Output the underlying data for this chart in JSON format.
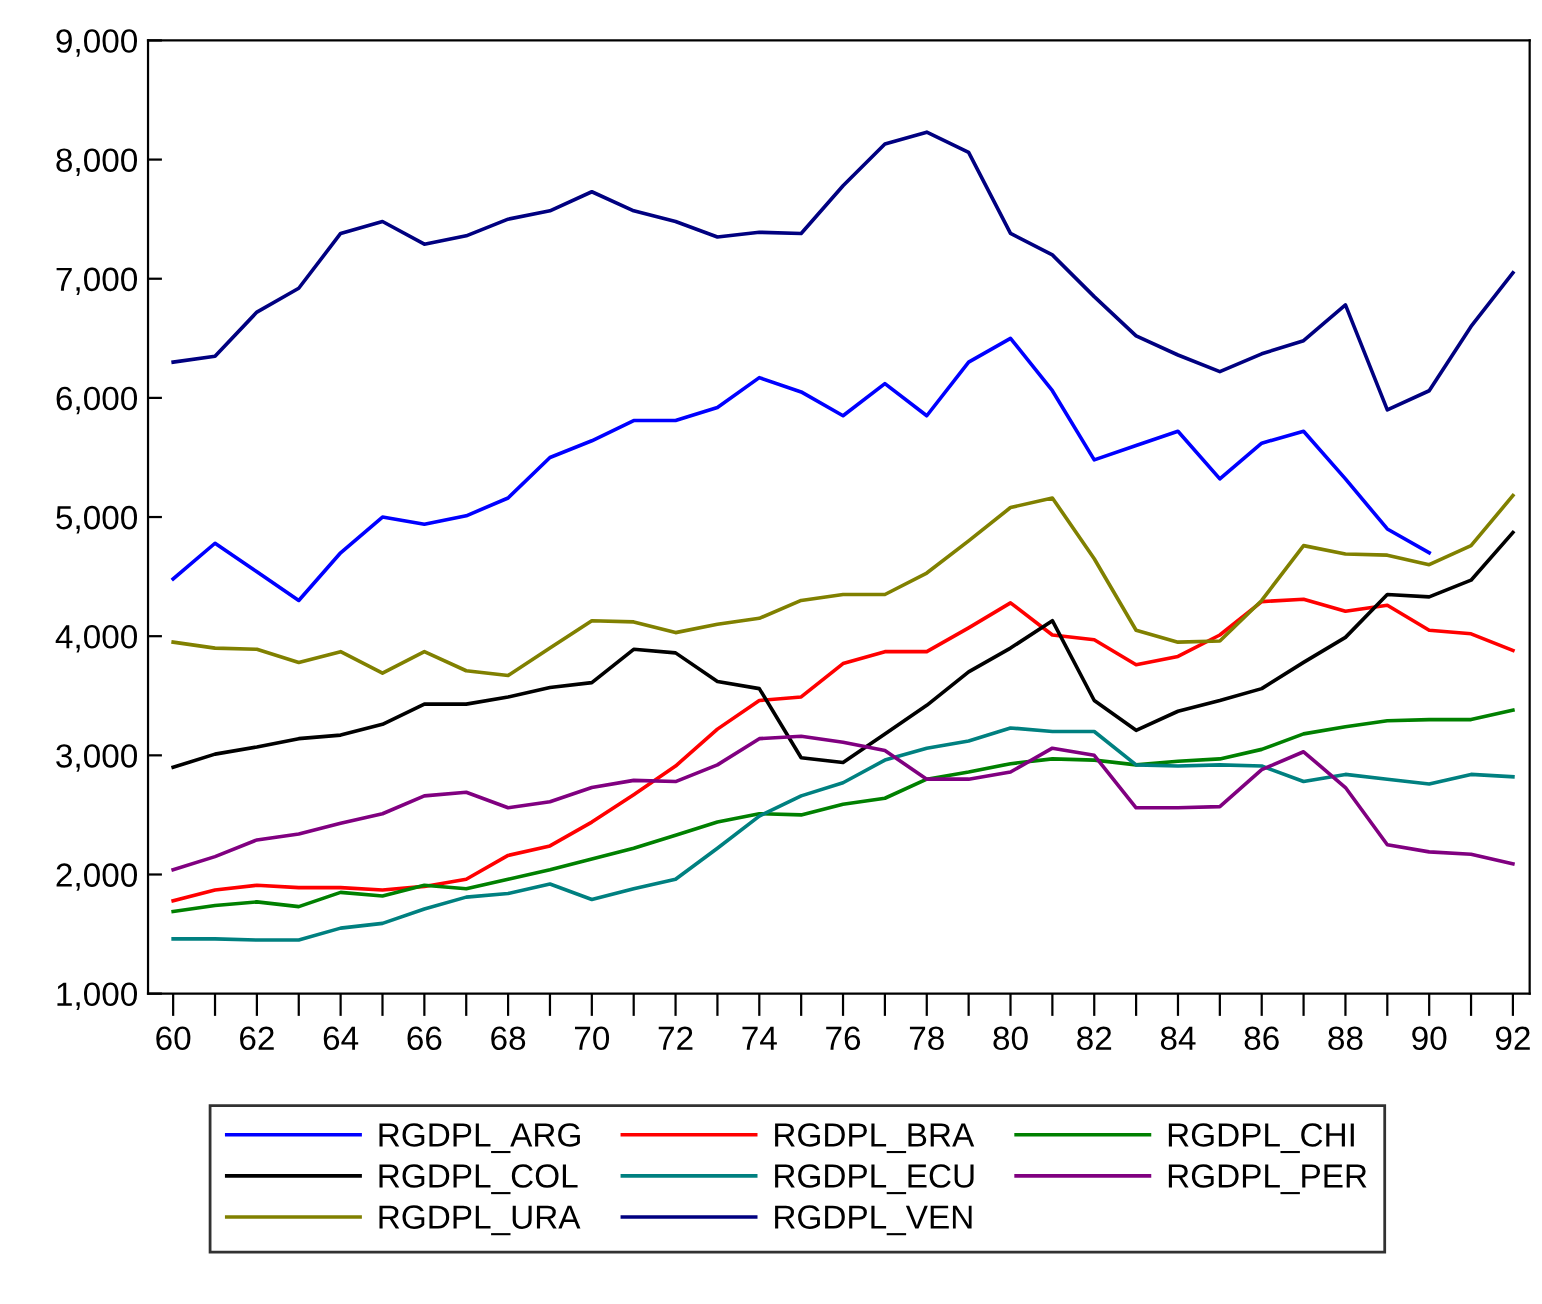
{
  "chart_data": {
    "type": "line",
    "x": [
      60,
      61,
      62,
      63,
      64,
      65,
      66,
      67,
      68,
      69,
      70,
      71,
      72,
      73,
      74,
      75,
      76,
      77,
      78,
      79,
      80,
      81,
      82,
      83,
      84,
      85,
      86,
      87,
      88,
      89,
      90,
      91,
      92
    ],
    "xlim": [
      59.4,
      92.4
    ],
    "xticks": [
      {
        "value": 60,
        "label": "60"
      },
      {
        "value": 61,
        "label": null
      },
      {
        "value": 62,
        "label": "62"
      },
      {
        "value": 63,
        "label": null
      },
      {
        "value": 64,
        "label": "64"
      },
      {
        "value": 65,
        "label": null
      },
      {
        "value": 66,
        "label": "66"
      },
      {
        "value": 67,
        "label": null
      },
      {
        "value": 68,
        "label": "68"
      },
      {
        "value": 69,
        "label": null
      },
      {
        "value": 70,
        "label": "70"
      },
      {
        "value": 71,
        "label": null
      },
      {
        "value": 72,
        "label": "72"
      },
      {
        "value": 73,
        "label": null
      },
      {
        "value": 74,
        "label": "74"
      },
      {
        "value": 75,
        "label": null
      },
      {
        "value": 76,
        "label": "76"
      },
      {
        "value": 77,
        "label": null
      },
      {
        "value": 78,
        "label": "78"
      },
      {
        "value": 79,
        "label": null
      },
      {
        "value": 80,
        "label": "80"
      },
      {
        "value": 81,
        "label": null
      },
      {
        "value": 82,
        "label": "82"
      },
      {
        "value": 83,
        "label": null
      },
      {
        "value": 84,
        "label": "84"
      },
      {
        "value": 85,
        "label": null
      },
      {
        "value": 86,
        "label": "86"
      },
      {
        "value": 87,
        "label": null
      },
      {
        "value": 88,
        "label": "88"
      },
      {
        "value": 89,
        "label": null
      },
      {
        "value": 90,
        "label": "90"
      },
      {
        "value": 91,
        "label": null
      },
      {
        "value": 92,
        "label": "92"
      }
    ],
    "ylim": [
      1000,
      9000
    ],
    "yticks": [
      {
        "value": 1000,
        "label": "1,000"
      },
      {
        "value": 2000,
        "label": "2,000"
      },
      {
        "value": 3000,
        "label": "3,000"
      },
      {
        "value": 4000,
        "label": "4,000"
      },
      {
        "value": 5000,
        "label": "5,000"
      },
      {
        "value": 6000,
        "label": "6,000"
      },
      {
        "value": 7000,
        "label": "7,000"
      },
      {
        "value": 8000,
        "label": "8,000"
      },
      {
        "value": 9000,
        "label": "9,000"
      }
    ],
    "grid": false,
    "legend": "bottom",
    "marker": "none",
    "line_style": "solid",
    "series": [
      {
        "name": "RGDPL_ARG",
        "color": "#0000ff",
        "values": [
          4480,
          4780,
          4540,
          4300,
          4700,
          5000,
          4940,
          5010,
          5160,
          5500,
          5640,
          5810,
          5810,
          5920,
          6170,
          6050,
          5850,
          6120,
          5850,
          6300,
          6500,
          6060,
          5480,
          5600,
          5720,
          5320,
          5620,
          5720,
          5320,
          4900,
          4700,
          null,
          null
        ]
      },
      {
        "name": "RGDPL_BRA",
        "color": "#ff0000",
        "values": [
          1780,
          1870,
          1910,
          1890,
          1890,
          1870,
          1900,
          1960,
          2160,
          2240,
          2440,
          2670,
          2910,
          3220,
          3460,
          3490,
          3770,
          3870,
          3870,
          4070,
          4280,
          4010,
          3970,
          3760,
          3830,
          4010,
          4290,
          4310,
          4210,
          4260,
          4050,
          4020,
          3880
        ]
      },
      {
        "name": "RGDPL_CHI",
        "color": "#008000",
        "values": [
          1690,
          1740,
          1770,
          1730,
          1850,
          1820,
          1910,
          1880,
          1960,
          2040,
          2130,
          2220,
          2330,
          2440,
          2510,
          2500,
          2590,
          2640,
          2800,
          2860,
          2930,
          2970,
          2960,
          2920,
          2950,
          2970,
          3050,
          3180,
          3240,
          3290,
          3300,
          3300,
          3380
        ]
      },
      {
        "name": "RGDPL_COL",
        "color": "#000000",
        "values": [
          2900,
          3010,
          3070,
          3140,
          3170,
          3260,
          3430,
          3430,
          3490,
          3570,
          3610,
          3890,
          3860,
          3620,
          3560,
          2980,
          2940,
          3180,
          3420,
          3700,
          3900,
          4130,
          3460,
          3210,
          3370,
          3460,
          3560,
          3780,
          3990,
          4350,
          4330,
          4470,
          4870
        ]
      },
      {
        "name": "RGDPL_ECU",
        "color": "#008080",
        "values": [
          1460,
          1460,
          1450,
          1450,
          1550,
          1590,
          1710,
          1810,
          1840,
          1920,
          1790,
          1880,
          1960,
          2220,
          2490,
          2660,
          2770,
          2960,
          3060,
          3120,
          3230,
          3200,
          3200,
          2920,
          2910,
          2920,
          2910,
          2780,
          2840,
          2800,
          2760,
          2840,
          2820
        ]
      },
      {
        "name": "RGDPL_PER",
        "color": "#800080",
        "values": [
          2040,
          2150,
          2290,
          2340,
          2430,
          2510,
          2660,
          2690,
          2560,
          2610,
          2730,
          2790,
          2780,
          2920,
          3140,
          3160,
          3110,
          3040,
          2800,
          2800,
          2860,
          3060,
          3000,
          2560,
          2560,
          2570,
          2880,
          3030,
          2730,
          2250,
          2190,
          2170,
          2090
        ]
      },
      {
        "name": "RGDPL_URA",
        "color": "#808000",
        "values": [
          3950,
          3900,
          3890,
          3780,
          3870,
          3690,
          3870,
          3710,
          3670,
          3900,
          4130,
          4120,
          4030,
          4100,
          4150,
          4300,
          4350,
          4350,
          4530,
          4800,
          5080,
          5160,
          4650,
          4050,
          3950,
          3960,
          4300,
          4760,
          4690,
          4680,
          4600,
          4760,
          5180
        ]
      },
      {
        "name": "RGDPL_VEN",
        "color": "#000080",
        "values": [
          6300,
          6350,
          6720,
          6920,
          7380,
          7480,
          7290,
          7360,
          7500,
          7570,
          7730,
          7570,
          7480,
          7350,
          7390,
          7380,
          7780,
          8130,
          8230,
          8060,
          7380,
          7200,
          6850,
          6520,
          6360,
          6220,
          6370,
          6480,
          6780,
          5900,
          6060,
          6600,
          7050
        ]
      }
    ]
  }
}
